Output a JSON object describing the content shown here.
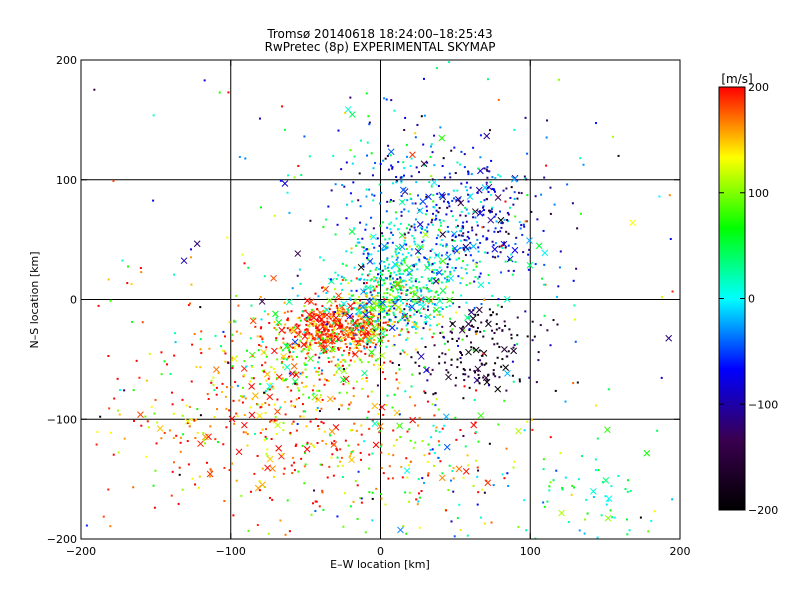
{
  "chart_data": {
    "type": "scatter",
    "title": "Tromsø 20140618 18:24:00–18:25:43",
    "subtitle": "RwPretec (8p) EXPERIMENTAL SKYMAP",
    "xlabel": "E–W location [km]",
    "ylabel": "N–S location [km]",
    "xlim": [
      -200,
      200
    ],
    "ylim": [
      -200,
      200
    ],
    "xticks": [
      -200,
      -100,
      0,
      100,
      200
    ],
    "yticks": [
      -200,
      -100,
      0,
      100,
      200
    ],
    "grid": true,
    "colorbar": {
      "label": "[m/s]",
      "range": [
        -200,
        200
      ],
      "ticks": [
        200,
        100,
        0,
        -100,
        -200
      ],
      "colormap": [
        "#000000",
        "#3a0050",
        "#0000ff",
        "#00ffff",
        "#00ff00",
        "#ffff00",
        "#ff0000"
      ]
    },
    "marker_types": [
      "dot",
      "x"
    ],
    "clusters": [
      {
        "cx": -30,
        "cy": -25,
        "sx": 18,
        "sy": 10,
        "v": 190,
        "vs": 25,
        "n": 420
      },
      {
        "cx": -55,
        "cy": -50,
        "sx": 25,
        "sy": 20,
        "v": 120,
        "vs": 70,
        "n": 230
      },
      {
        "cx": -60,
        "cy": -110,
        "sx": 55,
        "sy": 35,
        "v": 175,
        "vs": 50,
        "n": 330
      },
      {
        "cx": 0,
        "cy": -10,
        "sx": 22,
        "sy": 15,
        "v": 80,
        "vs": 90,
        "n": 320
      },
      {
        "cx": 15,
        "cy": 15,
        "sx": 18,
        "sy": 20,
        "v": 20,
        "vs": 50,
        "n": 260
      },
      {
        "cx": 30,
        "cy": 30,
        "sx": 30,
        "sy": 30,
        "v": 5,
        "vs": 45,
        "n": 220
      },
      {
        "cx": 60,
        "cy": 70,
        "sx": 25,
        "sy": 30,
        "v": -80,
        "vs": 40,
        "n": 260
      },
      {
        "cx": 15,
        "cy": 100,
        "sx": 30,
        "sy": 30,
        "v": -40,
        "vs": 60,
        "n": 140
      },
      {
        "cx": 65,
        "cy": -45,
        "sx": 22,
        "sy": 18,
        "v": -170,
        "vs": 40,
        "n": 170
      },
      {
        "cx": 25,
        "cy": -140,
        "sx": 45,
        "sy": 40,
        "v": 80,
        "vs": 80,
        "n": 160
      },
      {
        "cx": 150,
        "cy": -165,
        "sx": 25,
        "sy": 22,
        "v": 30,
        "vs": 45,
        "n": 55
      },
      {
        "cx": -120,
        "cy": -70,
        "sx": 40,
        "sy": 50,
        "v": 160,
        "vs": 60,
        "n": 90
      },
      {
        "cx": 0,
        "cy": 0,
        "sx": 110,
        "sy": 110,
        "v": 0,
        "vs": 140,
        "n": 280
      }
    ]
  }
}
